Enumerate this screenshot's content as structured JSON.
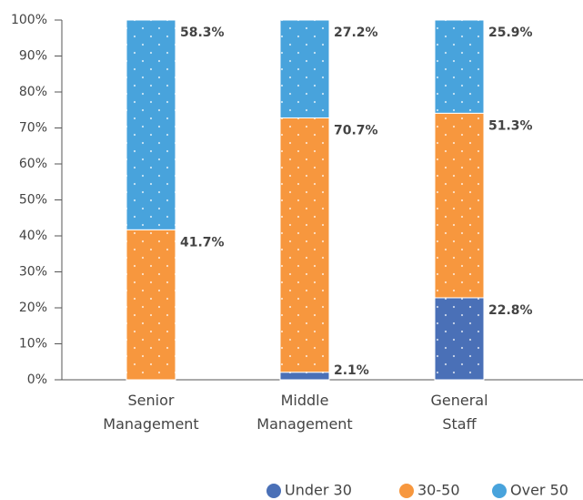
{
  "chart_data": {
    "type": "stacked_bar",
    "categories": [
      "Senior Management",
      "Middle Management",
      "General Staff"
    ],
    "series": [
      {
        "name": "Under 30",
        "color": "#4a70b7",
        "values": [
          0,
          2.1,
          22.8
        ],
        "value_labels": [
          null,
          "2.1%",
          "22.8%"
        ]
      },
      {
        "name": "30-50",
        "color": "#f7973e",
        "values": [
          41.7,
          70.7,
          51.3
        ],
        "value_labels": [
          "41.7%",
          "70.7%",
          "51.3%"
        ]
      },
      {
        "name": "Over 50",
        "color": "#48a3dc",
        "values": [
          58.3,
          27.2,
          25.9
        ],
        "value_labels": [
          "58.3%",
          "27.2%",
          "25.9%"
        ]
      }
    ],
    "ylim": [
      0,
      100
    ],
    "yticks": [
      {
        "value": 0,
        "label": "0%"
      },
      {
        "value": 10,
        "label": "10%"
      },
      {
        "value": 20,
        "label": "20%"
      },
      {
        "value": 30,
        "label": "30%"
      },
      {
        "value": 40,
        "label": "40%"
      },
      {
        "value": 50,
        "label": "50%"
      },
      {
        "value": 60,
        "label": "60%"
      },
      {
        "value": 70,
        "label": "70%"
      },
      {
        "value": 80,
        "label": "80%"
      },
      {
        "value": 90,
        "label": "90%"
      },
      {
        "value": 100,
        "label": "100%"
      }
    ],
    "legend": "bottom-right"
  }
}
